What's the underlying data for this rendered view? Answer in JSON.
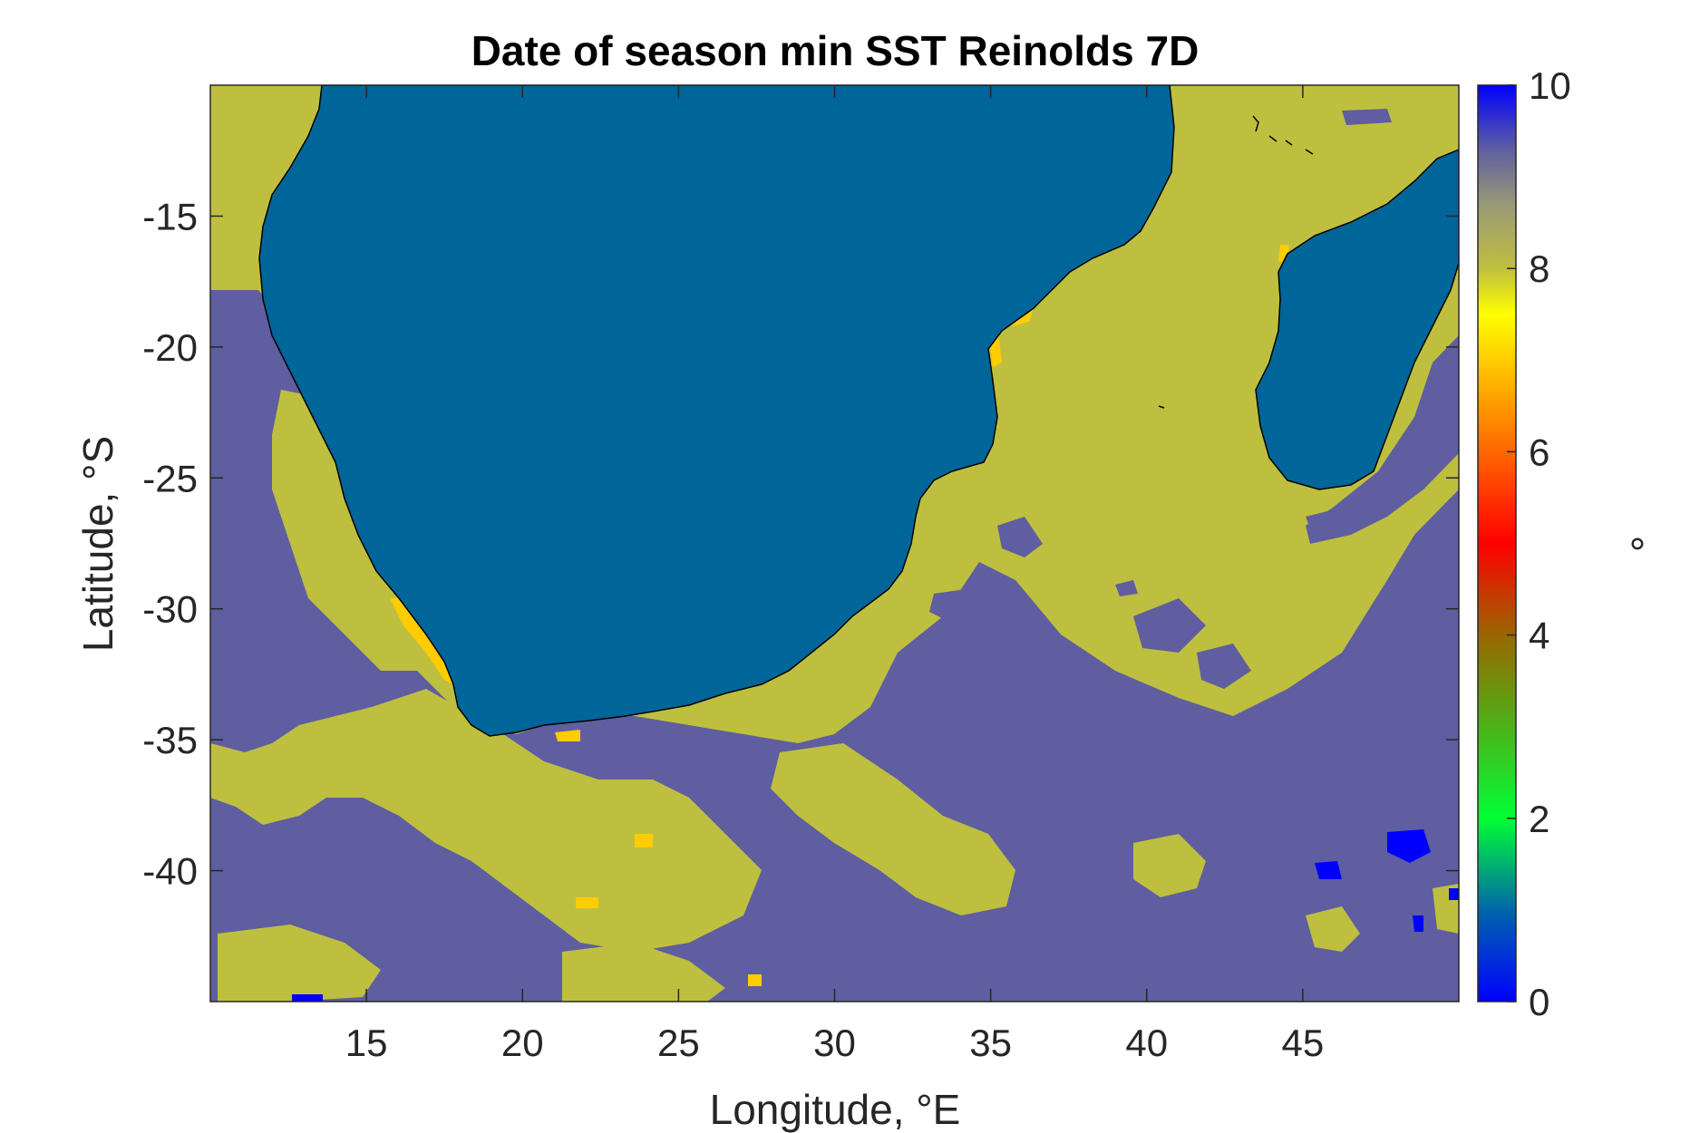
{
  "chart_data": {
    "type": "heatmap",
    "title": "Date of season min SST Reinolds 7D",
    "xlabel": "Longitude, °E",
    "ylabel": "Latitude, °S",
    "xlim": [
      10,
      50
    ],
    "ylim": [
      -45,
      -10
    ],
    "xticks": [
      15,
      20,
      25,
      30,
      35,
      40,
      45
    ],
    "xtick_labels": [
      "15",
      "20",
      "25",
      "30",
      "35",
      "40",
      "45"
    ],
    "yticks": [
      -15,
      -20,
      -25,
      -30,
      -35,
      -40
    ],
    "ytick_labels": [
      "-15",
      "-20",
      "-25",
      "-30",
      "-35",
      "-40"
    ],
    "colorbar": {
      "label": "°",
      "range": [
        0,
        10
      ],
      "ticks": [
        0,
        2,
        4,
        6,
        8,
        10
      ],
      "tick_labels": [
        "0",
        "2",
        "4",
        "6",
        "8",
        "10"
      ],
      "stops": [
        {
          "v": 0,
          "color": "#0000ff"
        },
        {
          "v": 1,
          "color": "#0066aa"
        },
        {
          "v": 2,
          "color": "#00ff33"
        },
        {
          "v": 4,
          "color": "#996600"
        },
        {
          "v": 5,
          "color": "#ff0000"
        },
        {
          "v": 6,
          "color": "#ff6600"
        },
        {
          "v": 7,
          "color": "#ffcc00"
        },
        {
          "v": 7.5,
          "color": "#ffff00"
        },
        {
          "v": 8,
          "color": "#bfbf3f"
        },
        {
          "v": 8.7,
          "color": "#999977"
        },
        {
          "v": 9.3,
          "color": "#5e5ea0"
        },
        {
          "v": 10,
          "color": "#0000ff"
        }
      ]
    },
    "colors": {
      "land": "#006699",
      "category_low": "#5e5ea0",
      "category_high": "#bfbf3f",
      "category_peak": "#ffcc00",
      "category_zero": "#0000ff"
    },
    "regions": [
      {
        "value": 8,
        "kind": "ocean-background"
      },
      {
        "value": 9.3,
        "kind": "southwest-atlantic"
      },
      {
        "value": 9.3,
        "kind": "south-ocean-band"
      },
      {
        "value": 9.3,
        "kind": "mozambique-east"
      },
      {
        "value": 10,
        "kind": "isolated-cells"
      },
      {
        "value": 7,
        "kind": "coastal-patches"
      }
    ],
    "grid": false
  }
}
